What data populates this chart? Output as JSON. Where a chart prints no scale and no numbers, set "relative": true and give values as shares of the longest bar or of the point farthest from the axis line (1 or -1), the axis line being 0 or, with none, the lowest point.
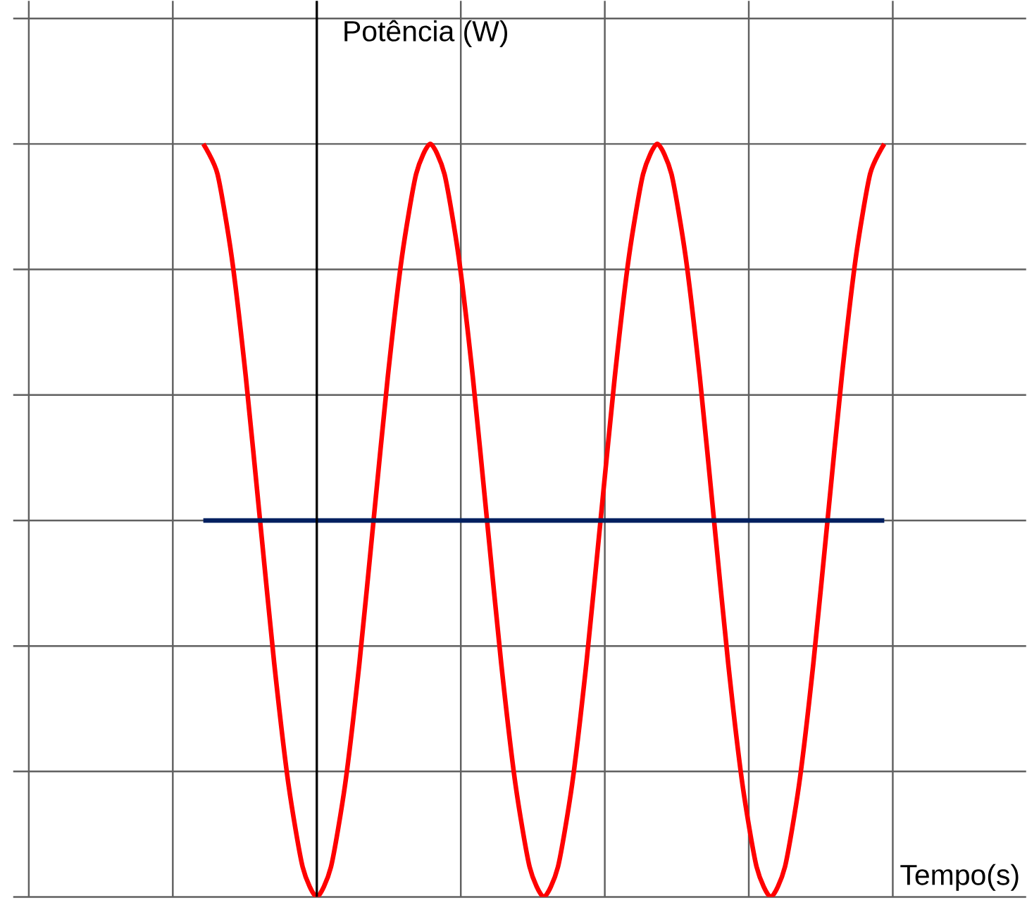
{
  "chart_data": {
    "type": "line",
    "relative": true,
    "grid": true,
    "xlabel": "Tempo(s)",
    "ylabel": "Potência (W)",
    "marker": "none",
    "line_style": "solid",
    "categories": [
      null,
      null,
      null,
      null,
      null,
      null,
      null,
      null,
      null,
      null,
      null,
      null,
      null,
      null,
      null,
      null,
      null,
      null,
      null,
      null,
      null,
      null,
      null,
      null,
      null,
      null,
      null,
      null,
      null,
      null,
      null,
      null,
      null,
      null,
      null,
      null,
      null,
      null,
      null,
      null,
      null,
      null,
      null,
      null,
      null,
      null,
      null,
      null,
      null
    ],
    "series": [
      {
        "color": "#ff0000",
        "values": [
          1,
          0.96,
          0.85,
          0.69,
          0.5,
          0.31,
          0.15,
          0.04,
          0,
          0.04,
          0.15,
          0.31,
          0.5,
          0.69,
          0.85,
          0.96,
          1,
          0.96,
          0.85,
          0.69,
          0.5,
          0.31,
          0.15,
          0.04,
          0,
          0.04,
          0.15,
          0.31,
          0.5,
          0.69,
          0.85,
          0.96,
          1,
          0.96,
          0.85,
          0.69,
          0.5,
          0.31,
          0.15,
          0.04,
          0,
          0.04,
          0.15,
          0.31,
          0.5,
          0.69,
          0.85,
          0.96,
          1
        ]
      },
      {
        "color": "#002060",
        "values": [
          0.5,
          0.5,
          0.5,
          0.5,
          0.5,
          0.5,
          0.5,
          0.5,
          0.5,
          0.5,
          0.5,
          0.5,
          0.5,
          0.5,
          0.5,
          0.5,
          0.5,
          0.5,
          0.5,
          0.5,
          0.5,
          0.5,
          0.5,
          0.5,
          0.5,
          0.5,
          0.5,
          0.5,
          0.5,
          0.5,
          0.5,
          0.5,
          0.5,
          0.5,
          0.5,
          0.5,
          0.5,
          0.5,
          0.5,
          0.5,
          0.5,
          0.5,
          0.5,
          0.5,
          0.5,
          0.5,
          0.5,
          0.5,
          0.5
        ]
      }
    ]
  }
}
